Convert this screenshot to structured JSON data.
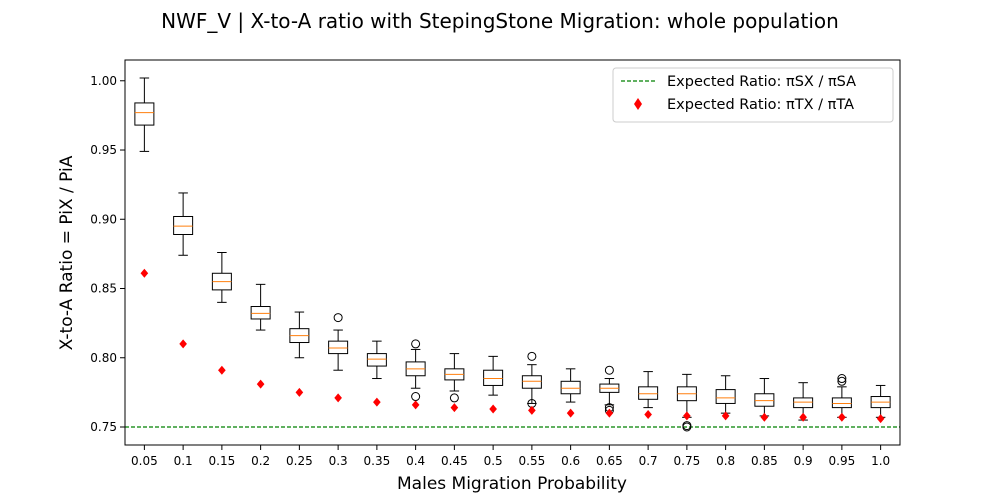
{
  "chart_data": {
    "type": "box",
    "title": "NWF_V | X-to-A ratio with StepingStone Migration: whole population",
    "xlabel": "Males Migration Probability",
    "ylabel": "X-to-A Ratio = PiX / PiA",
    "ylim": [
      0.737,
      1.015
    ],
    "yticks": [
      "0.75",
      "0.80",
      "0.85",
      "0.90",
      "0.95",
      "1.00"
    ],
    "categories": [
      "0.05",
      "0.1",
      "0.15",
      "0.2",
      "0.25",
      "0.3",
      "0.35",
      "0.4",
      "0.45",
      "0.5",
      "0.55",
      "0.6",
      "0.65",
      "0.7",
      "0.75",
      "0.8",
      "0.85",
      "0.9",
      "0.95",
      "1.0"
    ],
    "boxes": [
      {
        "whisker_low": 0.949,
        "q1": 0.968,
        "median": 0.977,
        "q3": 0.984,
        "whisker_high": 1.002,
        "outliers": []
      },
      {
        "whisker_low": 0.874,
        "q1": 0.889,
        "median": 0.895,
        "q3": 0.902,
        "whisker_high": 0.919,
        "outliers": []
      },
      {
        "whisker_low": 0.84,
        "q1": 0.849,
        "median": 0.855,
        "q3": 0.861,
        "whisker_high": 0.876,
        "outliers": []
      },
      {
        "whisker_low": 0.82,
        "q1": 0.828,
        "median": 0.832,
        "q3": 0.837,
        "whisker_high": 0.853,
        "outliers": []
      },
      {
        "whisker_low": 0.8,
        "q1": 0.811,
        "median": 0.816,
        "q3": 0.821,
        "whisker_high": 0.833,
        "outliers": []
      },
      {
        "whisker_low": 0.791,
        "q1": 0.803,
        "median": 0.807,
        "q3": 0.812,
        "whisker_high": 0.82,
        "outliers": [
          0.829
        ]
      },
      {
        "whisker_low": 0.785,
        "q1": 0.794,
        "median": 0.799,
        "q3": 0.803,
        "whisker_high": 0.812,
        "outliers": []
      },
      {
        "whisker_low": 0.778,
        "q1": 0.787,
        "median": 0.792,
        "q3": 0.797,
        "whisker_high": 0.806,
        "outliers": [
          0.81,
          0.772
        ]
      },
      {
        "whisker_low": 0.776,
        "q1": 0.784,
        "median": 0.788,
        "q3": 0.792,
        "whisker_high": 0.803,
        "outliers": [
          0.771
        ]
      },
      {
        "whisker_low": 0.773,
        "q1": 0.78,
        "median": 0.785,
        "q3": 0.791,
        "whisker_high": 0.801,
        "outliers": []
      },
      {
        "whisker_low": 0.767,
        "q1": 0.778,
        "median": 0.783,
        "q3": 0.787,
        "whisker_high": 0.795,
        "outliers": [
          0.801,
          0.767
        ]
      },
      {
        "whisker_low": 0.768,
        "q1": 0.774,
        "median": 0.778,
        "q3": 0.783,
        "whisker_high": 0.792,
        "outliers": []
      },
      {
        "whisker_low": 0.766,
        "q1": 0.775,
        "median": 0.778,
        "q3": 0.781,
        "whisker_high": 0.785,
        "outliers": [
          0.791,
          0.764,
          0.762
        ]
      },
      {
        "whisker_low": 0.764,
        "q1": 0.77,
        "median": 0.774,
        "q3": 0.779,
        "whisker_high": 0.79,
        "outliers": []
      },
      {
        "whisker_low": 0.757,
        "q1": 0.769,
        "median": 0.774,
        "q3": 0.779,
        "whisker_high": 0.788,
        "outliers": [
          0.751,
          0.75
        ]
      },
      {
        "whisker_low": 0.76,
        "q1": 0.767,
        "median": 0.771,
        "q3": 0.777,
        "whisker_high": 0.787,
        "outliers": []
      },
      {
        "whisker_low": 0.758,
        "q1": 0.765,
        "median": 0.769,
        "q3": 0.774,
        "whisker_high": 0.785,
        "outliers": []
      },
      {
        "whisker_low": 0.755,
        "q1": 0.764,
        "median": 0.768,
        "q3": 0.771,
        "whisker_high": 0.782,
        "outliers": []
      },
      {
        "whisker_low": 0.757,
        "q1": 0.764,
        "median": 0.767,
        "q3": 0.771,
        "whisker_high": 0.779,
        "outliers": [
          0.785,
          0.783
        ]
      },
      {
        "whisker_low": 0.757,
        "q1": 0.764,
        "median": 0.768,
        "q3": 0.772,
        "whisker_high": 0.78,
        "outliers": []
      }
    ],
    "expected_tx_ta": [
      0.861,
      0.81,
      0.791,
      0.781,
      0.775,
      0.771,
      0.768,
      0.766,
      0.764,
      0.763,
      0.762,
      0.76,
      0.76,
      0.759,
      0.758,
      0.758,
      0.757,
      0.757,
      0.757,
      0.756
    ],
    "expected_sx_sa": 0.75,
    "legend": {
      "position": "top-right",
      "entries": [
        {
          "label": "Expected Ratio: πSX / πSA",
          "marker": "dashed-line",
          "color": "#008000"
        },
        {
          "label": "Expected Ratio: πTX / πTA",
          "marker": "diamond",
          "color": "#ff0000"
        }
      ]
    },
    "colors": {
      "box": "#000000",
      "median": "#ff7f0e",
      "diamond": "#ff0000",
      "reference": "#008000"
    }
  }
}
